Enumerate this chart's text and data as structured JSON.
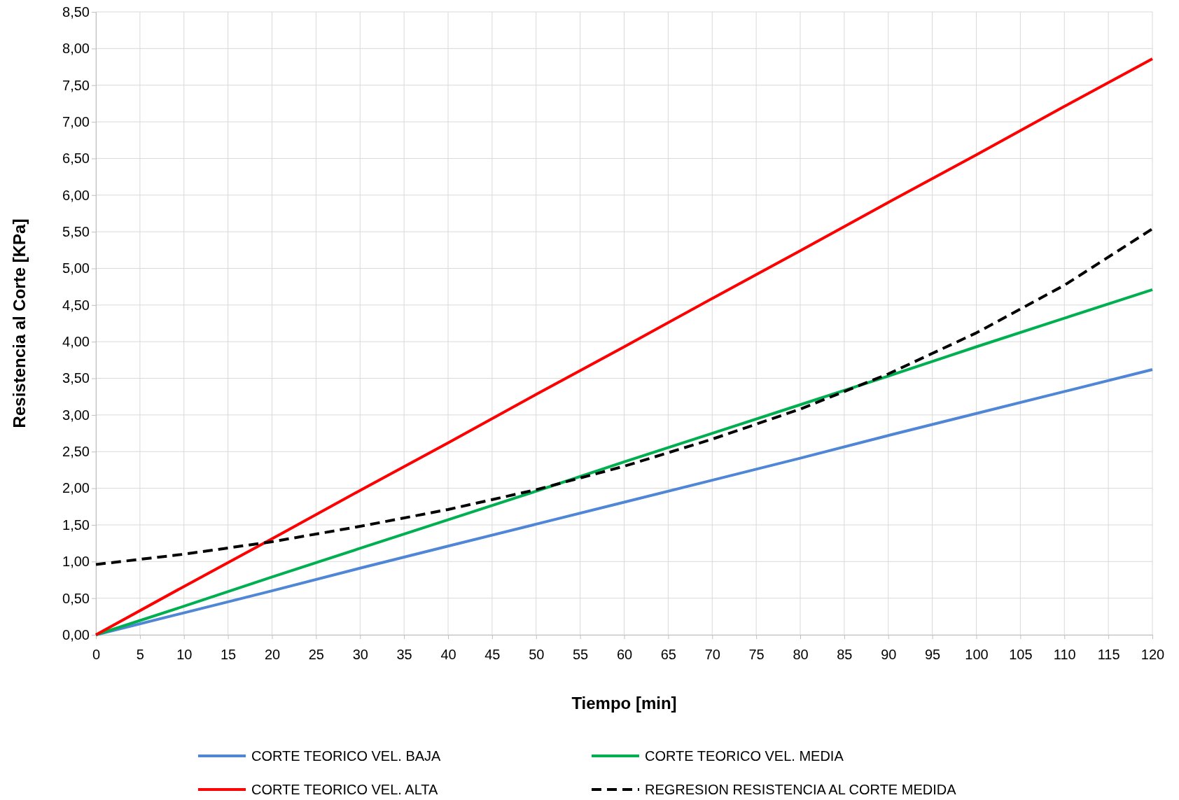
{
  "chart_data": {
    "type": "line",
    "xlabel": "Tiempo [min]",
    "ylabel": "Resistencia al Corte [KPa]",
    "x": [
      0,
      10,
      20,
      30,
      40,
      50,
      60,
      70,
      80,
      90,
      100,
      110,
      120
    ],
    "series": [
      {
        "name": "CORTE TEORICO VEL. BAJA",
        "color": "#4f86d6",
        "values": [
          0,
          0.3,
          0.6,
          0.91,
          1.21,
          1.51,
          1.81,
          2.11,
          2.41,
          2.72,
          3.02,
          3.32,
          3.62
        ]
      },
      {
        "name": "CORTE TEORICO VEL. MEDIA",
        "color": "#00b050",
        "values": [
          0,
          0.39,
          0.79,
          1.18,
          1.57,
          1.96,
          2.36,
          2.75,
          3.14,
          3.53,
          3.93,
          4.32,
          4.71
        ]
      },
      {
        "name": "CORTE TEORICO VEL. ALTA",
        "color": "#ff0000",
        "values": [
          0,
          0.66,
          1.31,
          1.97,
          2.62,
          3.28,
          3.93,
          4.59,
          5.24,
          5.9,
          6.55,
          7.21,
          7.86
        ]
      },
      {
        "name": "REGRESION RESISTENCIA AL CORTE MEDIDA",
        "color": "#000000",
        "line_style": "dashed",
        "values": [
          0.96,
          1.1,
          1.27,
          1.48,
          1.71,
          1.98,
          2.3,
          2.67,
          3.08,
          3.56,
          4.12,
          4.77,
          5.54
        ]
      }
    ],
    "xlim": [
      0,
      120
    ],
    "xticks": [
      0,
      5,
      10,
      15,
      20,
      25,
      30,
      35,
      40,
      45,
      50,
      55,
      60,
      65,
      70,
      75,
      80,
      85,
      90,
      95,
      100,
      105,
      110,
      115,
      120
    ],
    "ylim": [
      0,
      8.5
    ],
    "yticks": [
      {
        "value": 0,
        "label": "0,00"
      },
      {
        "value": 0.5,
        "label": "0,50"
      },
      {
        "value": 1,
        "label": "1,00"
      },
      {
        "value": 1.5,
        "label": "1,50"
      },
      {
        "value": 2,
        "label": "2,00"
      },
      {
        "value": 2.5,
        "label": "2,50"
      },
      {
        "value": 3,
        "label": "3,00"
      },
      {
        "value": 3.5,
        "label": "3,50"
      },
      {
        "value": 4,
        "label": "4,00"
      },
      {
        "value": 4.5,
        "label": "4,50"
      },
      {
        "value": 5,
        "label": "5,00"
      },
      {
        "value": 5.5,
        "label": "5,50"
      },
      {
        "value": 6,
        "label": "6,00"
      },
      {
        "value": 6.5,
        "label": "6,50"
      },
      {
        "value": 7,
        "label": "7,00"
      },
      {
        "value": 7.5,
        "label": "7,50"
      },
      {
        "value": 8,
        "label": "8,00"
      },
      {
        "value": 8.5,
        "label": "8,50"
      }
    ],
    "grid": true,
    "legend": "bottom",
    "marker": "none",
    "line_style": "solid"
  }
}
